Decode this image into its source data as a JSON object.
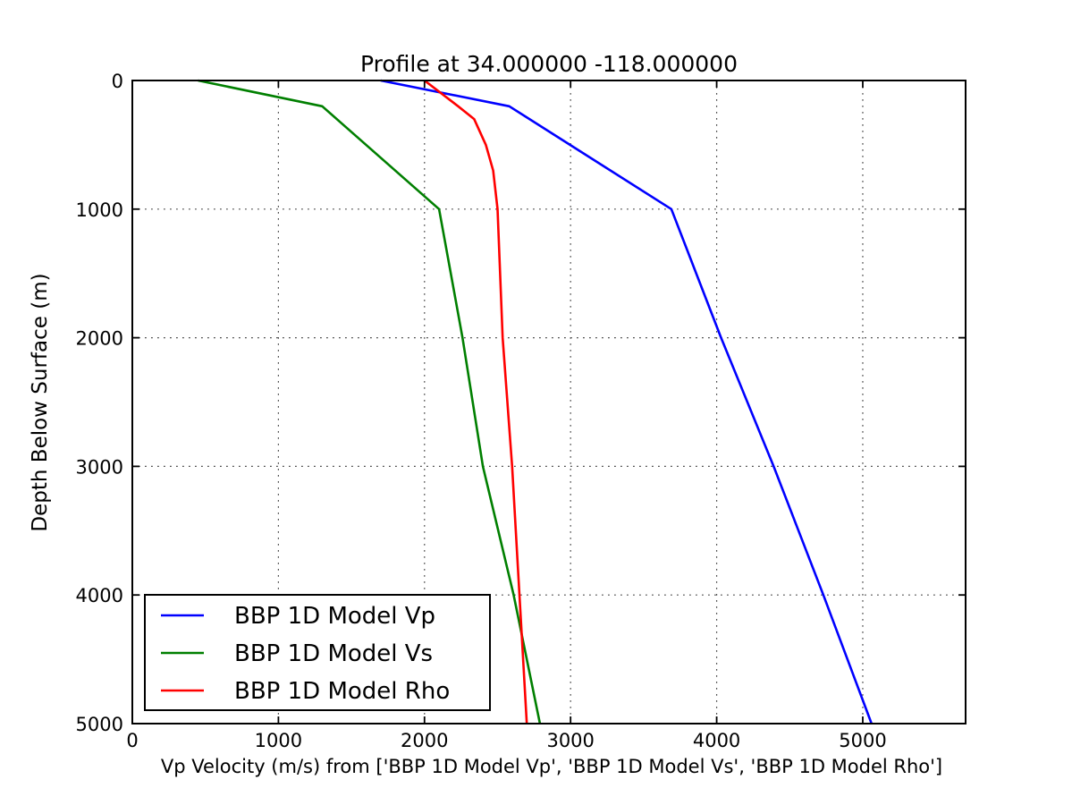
{
  "title": "Profile at 34.000000 -118.000000",
  "chart_data": {
    "type": "line",
    "title": "Profile at 34.000000 -118.000000",
    "xlabel": "Vp Velocity (m/s) from ['BBP 1D Model Vp', 'BBP 1D Model Vs', 'BBP 1D Model Rho']",
    "ylabel": "Depth Below Surface (m)",
    "xlim": [
      0,
      5704
    ],
    "ylim": [
      5000,
      0
    ],
    "y_axis_inverted": true,
    "grid": true,
    "grid_style": "dotted",
    "legend_position": "lower left",
    "xticks": [
      0,
      1000,
      2000,
      3000,
      4000,
      5000
    ],
    "yticks": [
      0,
      1000,
      2000,
      3000,
      4000,
      5000
    ],
    "axes_color": "#000000",
    "background_color": "#ffffff",
    "series": [
      {
        "name": "BBP 1D Model Vp",
        "color": "#0000ff",
        "depth_m": [
          0,
          200,
          1000,
          2000,
          3000,
          4000,
          5000
        ],
        "value": [
          1700,
          2580,
          3690,
          4030,
          4390,
          4730,
          5060
        ]
      },
      {
        "name": "BBP 1D Model Vs",
        "color": "#007f00",
        "depth_m": [
          0,
          200,
          1000,
          2000,
          3000,
          4000,
          5000
        ],
        "value": [
          450,
          1300,
          2100,
          2260,
          2400,
          2610,
          2790
        ]
      },
      {
        "name": "BBP 1D Model Rho",
        "color": "#ff0000",
        "depth_m": [
          0,
          200,
          300,
          500,
          700,
          1000,
          2000,
          3000,
          4000,
          5000
        ],
        "value": [
          2000,
          2230,
          2340,
          2420,
          2470,
          2500,
          2535,
          2600,
          2650,
          2700
        ]
      }
    ]
  }
}
